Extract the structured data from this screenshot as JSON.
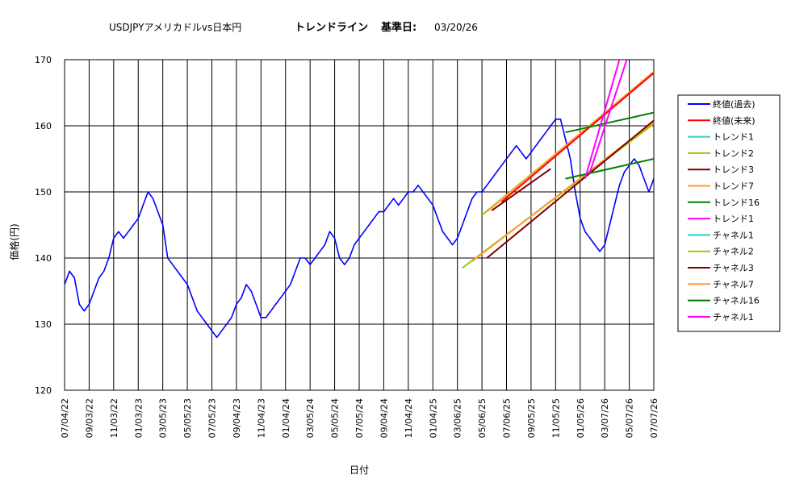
{
  "chart_data": {
    "type": "line",
    "title_instrument": "USDJPYアメリカドルvs日本円",
    "title_main": "トレンドライン",
    "title_base_label": "基準日:",
    "title_base_date": "03/20/26",
    "xlabel": "日付",
    "ylabel": "価格(円)",
    "ylim": [
      120,
      170
    ],
    "yticks": [
      120,
      130,
      140,
      150,
      160,
      170
    ],
    "xlim": [
      "2007-04-22",
      "2026-07-26"
    ],
    "xticks": [
      {
        "label": "07/04/22",
        "date": "2007-04-22"
      },
      {
        "label": "09/03/22",
        "date": "2009-03-22"
      },
      {
        "label": "11/03/22",
        "date": "2011-03-22"
      },
      {
        "label": "01/03/23",
        "date": "2013-03-23"
      },
      {
        "label": "03/05/23",
        "date": "2015-05-23"
      },
      {
        "label": "05/05/23",
        "date": "2017-05-23"
      },
      {
        "label": "07/05/23",
        "date": "2019-05-23"
      },
      {
        "label": "09/04/23",
        "date": "2021-04-23"
      },
      {
        "label": "11/04/23",
        "date": "2023-04-23"
      },
      {
        "label": "01/04/24",
        "date": "2024-01-04"
      },
      {
        "label": "03/05/24",
        "date": "2024-03-05"
      },
      {
        "label": "05/05/24",
        "date": "2024-05-05"
      },
      {
        "label": "07/05/24",
        "date": "2024-07-05"
      },
      {
        "label": "09/04/24",
        "date": "2024-09-04"
      },
      {
        "label": "11/04/24",
        "date": "2024-11-04"
      },
      {
        "label": "01/04/25",
        "date": "2025-01-04"
      },
      {
        "label": "03/06/25",
        "date": "2025-03-06"
      },
      {
        "label": "05/06/25",
        "date": "2025-05-06"
      },
      {
        "label": "07/06/25",
        "date": "2025-07-06"
      },
      {
        "label": "09/05/25",
        "date": "2025-09-05"
      },
      {
        "label": "11/05/25",
        "date": "2025-11-05"
      },
      {
        "label": "01/05/26",
        "date": "2026-01-05"
      },
      {
        "label": "03/07/26",
        "date": "2026-03-07"
      },
      {
        "label": "05/07/26",
        "date": "2026-05-07"
      },
      {
        "label": "07/07/26",
        "date": "2026-07-07"
      }
    ],
    "grid": true,
    "legend_position": "right",
    "legend": [
      {
        "label": "終値(過去)",
        "color": "#0000ff"
      },
      {
        "label": "終値(未来)",
        "color": "#ff0000"
      },
      {
        "label": "トレンド1",
        "color": "#33cccc"
      },
      {
        "label": "トレンド2",
        "color": "#99cc00"
      },
      {
        "label": "トレンド3",
        "color": "#800000"
      },
      {
        "label": "トレンド7",
        "color": "#ff9933"
      },
      {
        "label": "トレンド16",
        "color": "#008000"
      },
      {
        "label": "トレンド1",
        "color": "#ff00ff"
      },
      {
        "label": "チャネル1",
        "color": "#33cccc"
      },
      {
        "label": "チャネル2",
        "color": "#99cc00"
      },
      {
        "label": "チャネル3",
        "color": "#800000"
      },
      {
        "label": "チャネル7",
        "color": "#ff9933"
      },
      {
        "label": "チャネル16",
        "color": "#008000"
      },
      {
        "label": "チャネル1",
        "color": "#ff00ff"
      }
    ],
    "series": [
      {
        "name": "終値(過去)",
        "color": "#0000ff",
        "points": [
          [
            0.0,
            136
          ],
          [
            0.2,
            138
          ],
          [
            0.4,
            137
          ],
          [
            0.6,
            133
          ],
          [
            0.8,
            132
          ],
          [
            1.0,
            133
          ],
          [
            1.2,
            135
          ],
          [
            1.4,
            137
          ],
          [
            1.6,
            138
          ],
          [
            1.8,
            140
          ],
          [
            2.0,
            143
          ],
          [
            2.2,
            144
          ],
          [
            2.4,
            143
          ],
          [
            2.6,
            144
          ],
          [
            2.8,
            145
          ],
          [
            3.0,
            146
          ],
          [
            3.2,
            148
          ],
          [
            3.4,
            150
          ],
          [
            3.6,
            149
          ],
          [
            3.8,
            147
          ],
          [
            4.0,
            145
          ],
          [
            4.2,
            140
          ],
          [
            4.4,
            139
          ],
          [
            4.6,
            138
          ],
          [
            4.8,
            137
          ],
          [
            5.0,
            136
          ],
          [
            5.2,
            134
          ],
          [
            5.4,
            132
          ],
          [
            5.6,
            131
          ],
          [
            5.8,
            130
          ],
          [
            6.0,
            129
          ],
          [
            6.2,
            128
          ],
          [
            6.4,
            129
          ],
          [
            6.6,
            130
          ],
          [
            6.8,
            131
          ],
          [
            7.0,
            133
          ],
          [
            7.2,
            134
          ],
          [
            7.4,
            136
          ],
          [
            7.6,
            135
          ],
          [
            7.8,
            133
          ],
          [
            8.0,
            131
          ],
          [
            8.2,
            131
          ],
          [
            8.4,
            132
          ],
          [
            8.6,
            133
          ],
          [
            8.8,
            134
          ],
          [
            9.0,
            135
          ],
          [
            9.2,
            136
          ],
          [
            9.4,
            138
          ],
          [
            9.6,
            140
          ],
          [
            9.8,
            140
          ],
          [
            10.0,
            139
          ],
          [
            10.2,
            140
          ],
          [
            10.4,
            141
          ],
          [
            10.6,
            142
          ],
          [
            10.8,
            144
          ],
          [
            11.0,
            143
          ],
          [
            11.2,
            140
          ],
          [
            11.4,
            139
          ],
          [
            11.6,
            140
          ],
          [
            11.8,
            142
          ],
          [
            12.0,
            143
          ],
          [
            12.2,
            144
          ],
          [
            12.4,
            145
          ],
          [
            12.6,
            146
          ],
          [
            12.8,
            147
          ],
          [
            13.0,
            147
          ],
          [
            13.2,
            148
          ],
          [
            13.4,
            149
          ],
          [
            13.6,
            148
          ],
          [
            13.8,
            149
          ],
          [
            14.0,
            150
          ],
          [
            14.2,
            150
          ],
          [
            14.4,
            151
          ],
          [
            14.6,
            150
          ],
          [
            14.8,
            149
          ],
          [
            15.0,
            148
          ],
          [
            15.2,
            146
          ],
          [
            15.4,
            144
          ],
          [
            15.6,
            143
          ],
          [
            15.8,
            142
          ],
          [
            16.0,
            143
          ],
          [
            16.2,
            145
          ],
          [
            16.4,
            147
          ],
          [
            16.6,
            149
          ],
          [
            16.8,
            150
          ],
          [
            17.0,
            150
          ],
          [
            17.2,
            151
          ],
          [
            17.4,
            152
          ],
          [
            17.6,
            153
          ],
          [
            17.8,
            154
          ],
          [
            18.0,
            155
          ],
          [
            18.2,
            156
          ],
          [
            18.4,
            157
          ],
          [
            18.6,
            156
          ],
          [
            18.8,
            155
          ],
          [
            19.0,
            156
          ],
          [
            19.2,
            157
          ],
          [
            19.4,
            158
          ],
          [
            19.6,
            159
          ],
          [
            19.8,
            160
          ],
          [
            20.0,
            161
          ],
          [
            20.2,
            161
          ],
          [
            20.4,
            158
          ],
          [
            20.6,
            155
          ],
          [
            20.8,
            150
          ],
          [
            21.0,
            146
          ],
          [
            21.2,
            144
          ],
          [
            21.4,
            143
          ],
          [
            21.6,
            142
          ],
          [
            21.8,
            141
          ],
          [
            22.0,
            142
          ],
          [
            22.2,
            145
          ],
          [
            22.4,
            148
          ],
          [
            22.6,
            151
          ],
          [
            22.8,
            153
          ],
          [
            23.0,
            154
          ],
          [
            23.2,
            155
          ],
          [
            23.4,
            154
          ],
          [
            23.6,
            152
          ],
          [
            23.8,
            150
          ],
          [
            24.0,
            152
          ],
          [
            24.2,
            155
          ],
          [
            24.4,
            157
          ],
          [
            24.6,
            158
          ],
          [
            24.8,
            157
          ],
          [
            25.0,
            156
          ],
          [
            25.2,
            154
          ],
          [
            25.4,
            152
          ],
          [
            25.6,
            151
          ],
          [
            25.8,
            150
          ],
          [
            26.0,
            149
          ],
          [
            26.2,
            148
          ],
          [
            26.4,
            146
          ],
          [
            26.6,
            144
          ],
          [
            26.8,
            142
          ],
          [
            27.0,
            141
          ],
          [
            27.2,
            143
          ],
          [
            27.4,
            144
          ],
          [
            27.6,
            145
          ],
          [
            27.8,
            144
          ],
          [
            28.0,
            143
          ],
          [
            28.2,
            144
          ],
          [
            28.4,
            145
          ],
          [
            28.6,
            146
          ],
          [
            28.8,
            147
          ],
          [
            29.0,
            148
          ],
          [
            29.2,
            147
          ],
          [
            29.4,
            147
          ],
          [
            29.6,
            148
          ],
          [
            29.8,
            147
          ],
          [
            30.0,
            148
          ],
          [
            30.2,
            149
          ],
          [
            30.4,
            151
          ],
          [
            30.6,
            153
          ],
          [
            30.8,
            154
          ],
          [
            31.0,
            155
          ],
          [
            31.2,
            156
          ],
          [
            31.4,
            157
          ],
          [
            31.6,
            156
          ],
          [
            31.8,
            157
          ],
          [
            32.0,
            158
          ],
          [
            32.2,
            159
          ],
          [
            32.4,
            158
          ],
          [
            32.6,
            155
          ],
          [
            32.8,
            154
          ],
          [
            33.0,
            157
          ],
          [
            33.2,
            153
          ],
          [
            33.4,
            154
          ],
          [
            33.6,
            156
          ]
        ]
      },
      {
        "name": "トレンド2",
        "color": "#99cc00",
        "line": [
          [
            17.0,
            146.5
          ],
          [
            24.0,
            168.0
          ]
        ]
      },
      {
        "name": "トレンド7",
        "color": "#ff9933",
        "line": [
          [
            17.2,
            147.0
          ],
          [
            24.0,
            168.2
          ]
        ]
      },
      {
        "name": "終値(未来)",
        "color": "#ff0000",
        "line": [
          [
            17.8,
            148.5
          ],
          [
            24.0,
            168.0
          ]
        ]
      },
      {
        "name": "チャネル2",
        "color": "#99cc00",
        "line": [
          [
            16.2,
            138.5
          ],
          [
            24.0,
            160.3
          ]
        ]
      },
      {
        "name": "チャネル7",
        "color": "#ff9933",
        "line": [
          [
            16.6,
            139.5
          ],
          [
            24.0,
            160.6
          ]
        ]
      },
      {
        "name": "チャネル3",
        "color": "#800000",
        "line": [
          [
            17.2,
            140.0
          ],
          [
            24.0,
            160.8
          ]
        ]
      },
      {
        "name": "トレンド3",
        "color": "#800000",
        "line": [
          [
            17.4,
            147.2
          ],
          [
            19.8,
            153.5
          ]
        ]
      },
      {
        "name": "トレンド16",
        "color": "#008000",
        "line": [
          [
            20.4,
            159.0
          ],
          [
            24.0,
            162.0
          ]
        ]
      },
      {
        "name": "チャネル16",
        "color": "#008000",
        "line": [
          [
            20.4,
            152.0
          ],
          [
            24.0,
            155.0
          ]
        ]
      },
      {
        "name": "トレンド1",
        "color": "#ff00ff",
        "line": [
          [
            21.4,
            153.0
          ],
          [
            22.9,
            170.0
          ]
        ]
      },
      {
        "name": "チャネル1",
        "color": "#ff00ff",
        "line": [
          [
            21.2,
            152.0
          ],
          [
            22.6,
            170.0
          ]
        ]
      }
    ]
  }
}
